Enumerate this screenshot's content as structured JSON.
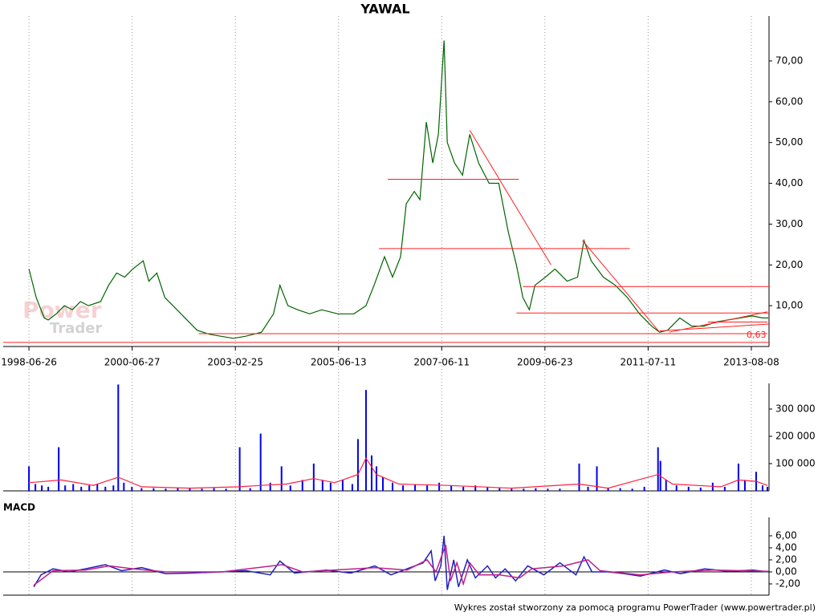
{
  "chart_data": [
    {
      "type": "line",
      "title": "YAWAL",
      "color": "#006400",
      "x": [
        0,
        9,
        19,
        24,
        34,
        44,
        54,
        64,
        74,
        89,
        99,
        109,
        119,
        129,
        142,
        149,
        159,
        169,
        179,
        194,
        209,
        224,
        239,
        254,
        269,
        289,
        304,
        312,
        322,
        334,
        349,
        364,
        384,
        404,
        419,
        429,
        442,
        452,
        462,
        469,
        479,
        486,
        494,
        502,
        509,
        516,
        520,
        529,
        539,
        548,
        559,
        572,
        584,
        596,
        606,
        614,
        622,
        629,
        642,
        654,
        669,
        682,
        690,
        699,
        714,
        729,
        744,
        759,
        774,
        784,
        794,
        809,
        824,
        839,
        854,
        869,
        884,
        899,
        912,
        919
      ],
      "values": [
        19,
        12,
        7,
        6.5,
        8,
        10,
        9,
        11,
        10,
        11,
        15,
        18,
        17,
        19,
        21,
        16,
        18,
        12,
        10,
        7,
        4,
        3,
        2.5,
        2,
        2.5,
        3.5,
        8,
        15,
        10,
        9,
        8,
        9,
        8,
        8,
        10,
        15,
        22,
        17,
        22,
        35,
        38,
        36,
        55,
        45,
        52,
        75,
        50,
        45,
        42,
        52,
        45,
        40,
        40,
        28,
        20,
        12,
        9,
        15,
        17,
        19,
        16,
        17,
        26,
        21,
        17,
        15,
        12,
        8,
        5,
        3.5,
        4,
        7,
        5,
        5,
        6,
        6.5,
        7,
        7.5,
        7,
        7
      ],
      "xlim": [
        -32,
        920
      ],
      "ylim": [
        0,
        81
      ],
      "grid": true,
      "xticks": [
        {
          "value": 0,
          "label": "1998-06-26"
        },
        {
          "value": 128.3,
          "label": "2000-06-27"
        },
        {
          "value": 256.6,
          "label": "2003-02-25"
        },
        {
          "value": 384.9,
          "label": "2005-06-13"
        },
        {
          "value": 513.1,
          "label": "2007-06-11"
        },
        {
          "value": 641.4,
          "label": "2009-06-23"
        },
        {
          "value": 769.7,
          "label": "2011-07-11"
        },
        {
          "value": 898,
          "label": "2013-08-08"
        }
      ],
      "yticks": [
        {
          "value": 10,
          "label": "10,00"
        },
        {
          "value": 20,
          "label": "20,00"
        },
        {
          "value": 30,
          "label": "30,00"
        },
        {
          "value": 40,
          "label": "40,00"
        },
        {
          "value": 50,
          "label": "50,00"
        },
        {
          "value": 60,
          "label": "60,00"
        },
        {
          "value": 70,
          "label": "70,00"
        }
      ],
      "trend_lines": [
        {
          "color": "#ff2020",
          "x": [
            -32,
            920
          ],
          "values": [
            1,
            1
          ]
        },
        {
          "color": "#ff2020",
          "x": [
            211,
            918
          ],
          "values": [
            3.15,
            3.15
          ]
        },
        {
          "color": "#ff2020",
          "x": [
            446,
            609
          ],
          "values": [
            41,
            41
          ]
        },
        {
          "color": "#ff2020",
          "x": [
            435,
            747
          ],
          "values": [
            24,
            24
          ]
        },
        {
          "color": "#ff2020",
          "x": [
            614,
            920
          ],
          "values": [
            14.7,
            14.7
          ]
        },
        {
          "color": "#ff2020",
          "x": [
            606,
            920
          ],
          "values": [
            8.2,
            8.2
          ]
        },
        {
          "color": "#ff2020",
          "x": [
            548,
            649
          ],
          "values": [
            53,
            20
          ]
        },
        {
          "color": "#ff2020",
          "x": [
            688,
            784
          ],
          "values": [
            26,
            3.5
          ]
        },
        {
          "color": "#ff2020",
          "x": [
            796,
            918
          ],
          "values": [
            3.5,
            8.5
          ]
        },
        {
          "color": "#ff2020",
          "x": [
            784,
            920
          ],
          "values": [
            3.8,
            5.5
          ]
        },
        {
          "color": "#ff2020",
          "x": [
            844,
            918
          ],
          "values": [
            6,
            6
          ]
        }
      ],
      "annotation": "0,63",
      "watermark": [
        "Power",
        "Trader"
      ]
    },
    {
      "type": "bar",
      "color": "#0000ee",
      "x": [
        0,
        8,
        16,
        24,
        37,
        45,
        55,
        65,
        75,
        85,
        95,
        105,
        111,
        118,
        128,
        140,
        155,
        170,
        185,
        200,
        215,
        230,
        245,
        262,
        275,
        288,
        300,
        314,
        325,
        340,
        354,
        365,
        375,
        390,
        402,
        409,
        419,
        426,
        432,
        440,
        452,
        465,
        480,
        495,
        510,
        525,
        540,
        555,
        570,
        585,
        600,
        615,
        630,
        645,
        660,
        684,
        695,
        706,
        720,
        735,
        750,
        765,
        782,
        785,
        792,
        805,
        820,
        835,
        850,
        865,
        882,
        890,
        904,
        912,
        918
      ],
      "values": [
        90000,
        25000,
        20000,
        15000,
        160000,
        20000,
        25000,
        15000,
        20000,
        25000,
        15000,
        20000,
        390000,
        30000,
        15000,
        10000,
        10000,
        8000,
        10000,
        12000,
        8000,
        10000,
        8000,
        160000,
        10000,
        210000,
        30000,
        90000,
        20000,
        40000,
        100000,
        40000,
        30000,
        40000,
        25000,
        190000,
        370000,
        130000,
        90000,
        50000,
        30000,
        20000,
        25000,
        20000,
        30000,
        20000,
        15000,
        20000,
        15000,
        10000,
        8000,
        8000,
        10000,
        8000,
        8000,
        100000,
        15000,
        90000,
        12000,
        10000,
        8000,
        15000,
        160000,
        110000,
        40000,
        20000,
        15000,
        12000,
        30000,
        15000,
        100000,
        40000,
        70000,
        20000,
        15000
      ],
      "average": {
        "color": "#ff2040",
        "x": [
          0,
          40,
          80,
          111,
          140,
          200,
          262,
          288,
          320,
          354,
          380,
          409,
          419,
          432,
          460,
          520,
          600,
          684,
          720,
          782,
          800,
          860,
          882,
          904,
          918
        ],
        "values": [
          30000,
          40000,
          20000,
          50000,
          15000,
          10000,
          15000,
          20000,
          25000,
          45000,
          30000,
          60000,
          120000,
          60000,
          25000,
          20000,
          10000,
          25000,
          10000,
          60000,
          25000,
          15000,
          40000,
          35000,
          20000
        ]
      },
      "xlim": [
        -32,
        920
      ],
      "ylim": [
        0,
        394000
      ],
      "yticks": [
        {
          "value": 100000,
          "label": "100 000"
        },
        {
          "value": 200000,
          "label": "200 000"
        },
        {
          "value": 300000,
          "label": "300 000"
        }
      ]
    },
    {
      "type": "line",
      "title": "MACD",
      "series": [
        {
          "color": "#2020c0",
          "x": [
            6,
            15,
            30,
            50,
            70,
            95,
            115,
            140,
            170,
            200,
            240,
            270,
            300,
            312,
            330,
            370,
            400,
            430,
            450,
            470,
            490,
            500,
            505,
            512,
            516,
            520,
            528,
            534,
            545,
            555,
            570,
            580,
            592,
            605,
            620,
            640,
            660,
            680,
            690,
            700,
            720,
            740,
            760,
            790,
            810,
            840,
            870,
            900,
            919
          ],
          "values": [
            -2.5,
            -0.5,
            0.5,
            0,
            0.5,
            1.2,
            0.2,
            0.7,
            -0.3,
            -0.2,
            0,
            0.2,
            -0.5,
            1.8,
            -0.2,
            0.3,
            -0.2,
            1,
            -0.5,
            0.5,
            1.5,
            3.5,
            -1.5,
            1,
            6,
            -3,
            2,
            -2.5,
            2,
            -1,
            1,
            -1,
            0.5,
            -1.5,
            1,
            -0.5,
            1.5,
            -0.5,
            2.5,
            0,
            0,
            -0.3,
            -0.7,
            0.3,
            -0.3,
            0.5,
            0.1,
            0.3,
            0
          ]
        },
        {
          "color": "#c0208a",
          "x": [
            6,
            30,
            70,
            100,
            130,
            170,
            240,
            315,
            340,
            430,
            470,
            495,
            506,
            518,
            524,
            532,
            540,
            548,
            560,
            585,
            610,
            625,
            665,
            695,
            710,
            760,
            800,
            850,
            919
          ],
          "values": [
            -2.2,
            0.2,
            0.3,
            1,
            0.5,
            0,
            0,
            1.2,
            0,
            0.7,
            0.3,
            2,
            0,
            4.5,
            -1.5,
            1.5,
            -2,
            1.5,
            -0.5,
            -0.5,
            -1,
            0.5,
            1,
            2,
            0.2,
            -0.5,
            0,
            0.3,
            0.1
          ]
        }
      ],
      "xlim": [
        -32,
        920
      ],
      "ylim": [
        -3.87,
        9.07
      ],
      "yticks": [
        {
          "value": -2,
          "label": "-2,00"
        },
        {
          "value": 0,
          "label": "0,00"
        },
        {
          "value": 2,
          "label": "2,00"
        },
        {
          "value": 4,
          "label": "4,00"
        },
        {
          "value": 6,
          "label": "6,00"
        }
      ]
    }
  ],
  "footer": "Wykres został stworzony za pomocą programu PowerTrader (www.powertrader.pl)"
}
